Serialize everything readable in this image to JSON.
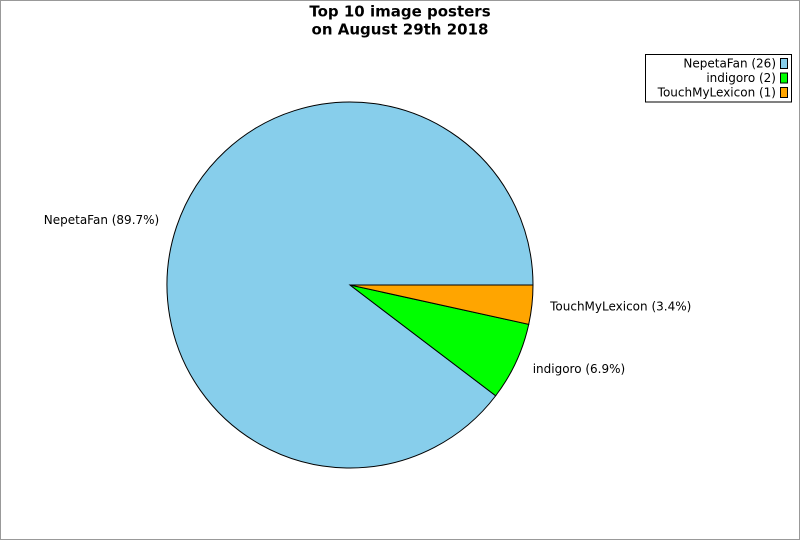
{
  "chart_data": {
    "type": "pie",
    "title": [
      "Top 10 image posters",
      "on August 29th 2018"
    ],
    "categories": [
      "NepetaFan",
      "indigoro",
      "TouchMyLexicon"
    ],
    "values": [
      26,
      2,
      1
    ],
    "value_labels": [
      "NepetaFan (89.7%)",
      "indigoro (6.9%)",
      "TouchMyLexicon (3.4%)"
    ],
    "legend_labels": [
      "NepetaFan (26)",
      "indigoro (2)",
      "TouchMyLexicon (1)"
    ],
    "colors": [
      "#87ceeb",
      "#00ff00",
      "#ffa500"
    ],
    "legend": "top-right"
  }
}
